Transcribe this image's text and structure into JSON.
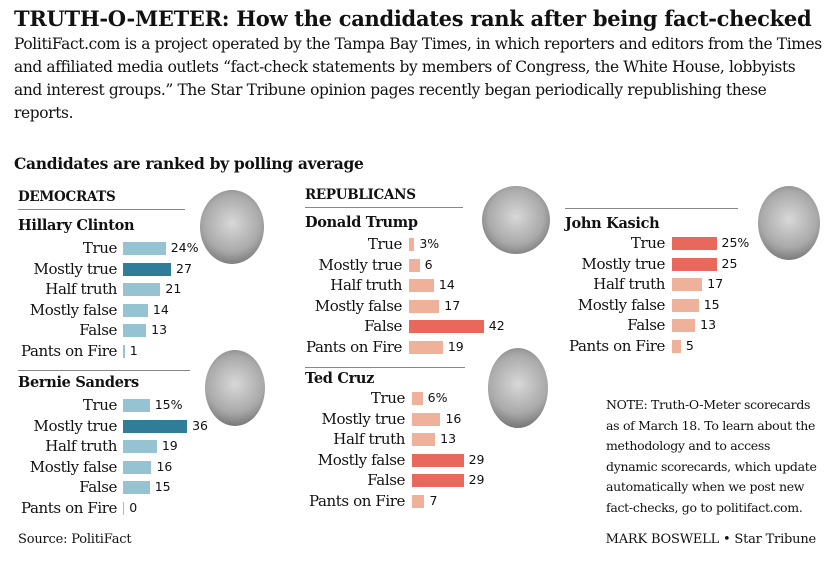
{
  "title": "TRUTH-O-METER: How the candidates rank after being fact-checked",
  "intro": "PolitiFact.com is a project operated by the Tampa Bay Times, in which reporters and editors from the Times and affiliated media outlets “fact-check statements by members of Congress, the White House, lobbyists and interest groups.” The Star Tribune opinion pages recently began periodically republishing these reports.",
  "subtitle": "Candidates are ranked by polling average",
  "parties": {
    "dem": "DEMOCRATS",
    "rep": "REPUBLICANS"
  },
  "note": "NOTE: Truth-O-Meter scorecards as of March 18. To learn about the methodology and to access dynamic scorecards, which update automatically when we post new fact-checks, go to politifact.com.",
  "source": "Source: PolitiFact",
  "credit": "MARK BOSWELL • Star Tribune",
  "colors": {
    "dem_light": "#96c3d2",
    "dem_dark": "#2f7d98",
    "rep_light": "#f0b19b",
    "rep_dark": "#e8695b"
  },
  "chart_data": {
    "type": "bar",
    "orientation": "horizontal",
    "unit": "%",
    "categories": [
      "True",
      "Mostly true",
      "Half truth",
      "Mostly false",
      "False",
      "Pants on Fire"
    ],
    "series": [
      {
        "name": "Hillary Clinton",
        "party": "dem",
        "values": [
          24,
          27,
          21,
          14,
          13,
          1
        ]
      },
      {
        "name": "Bernie Sanders",
        "party": "dem",
        "values": [
          15,
          36,
          19,
          16,
          15,
          0
        ]
      },
      {
        "name": "Donald Trump",
        "party": "rep",
        "values": [
          3,
          6,
          14,
          17,
          42,
          19
        ]
      },
      {
        "name": "Ted Cruz",
        "party": "rep",
        "values": [
          6,
          16,
          13,
          29,
          29,
          7
        ]
      },
      {
        "name": "John Kasich",
        "party": "rep",
        "values": [
          25,
          25,
          17,
          15,
          13,
          5
        ]
      }
    ]
  }
}
